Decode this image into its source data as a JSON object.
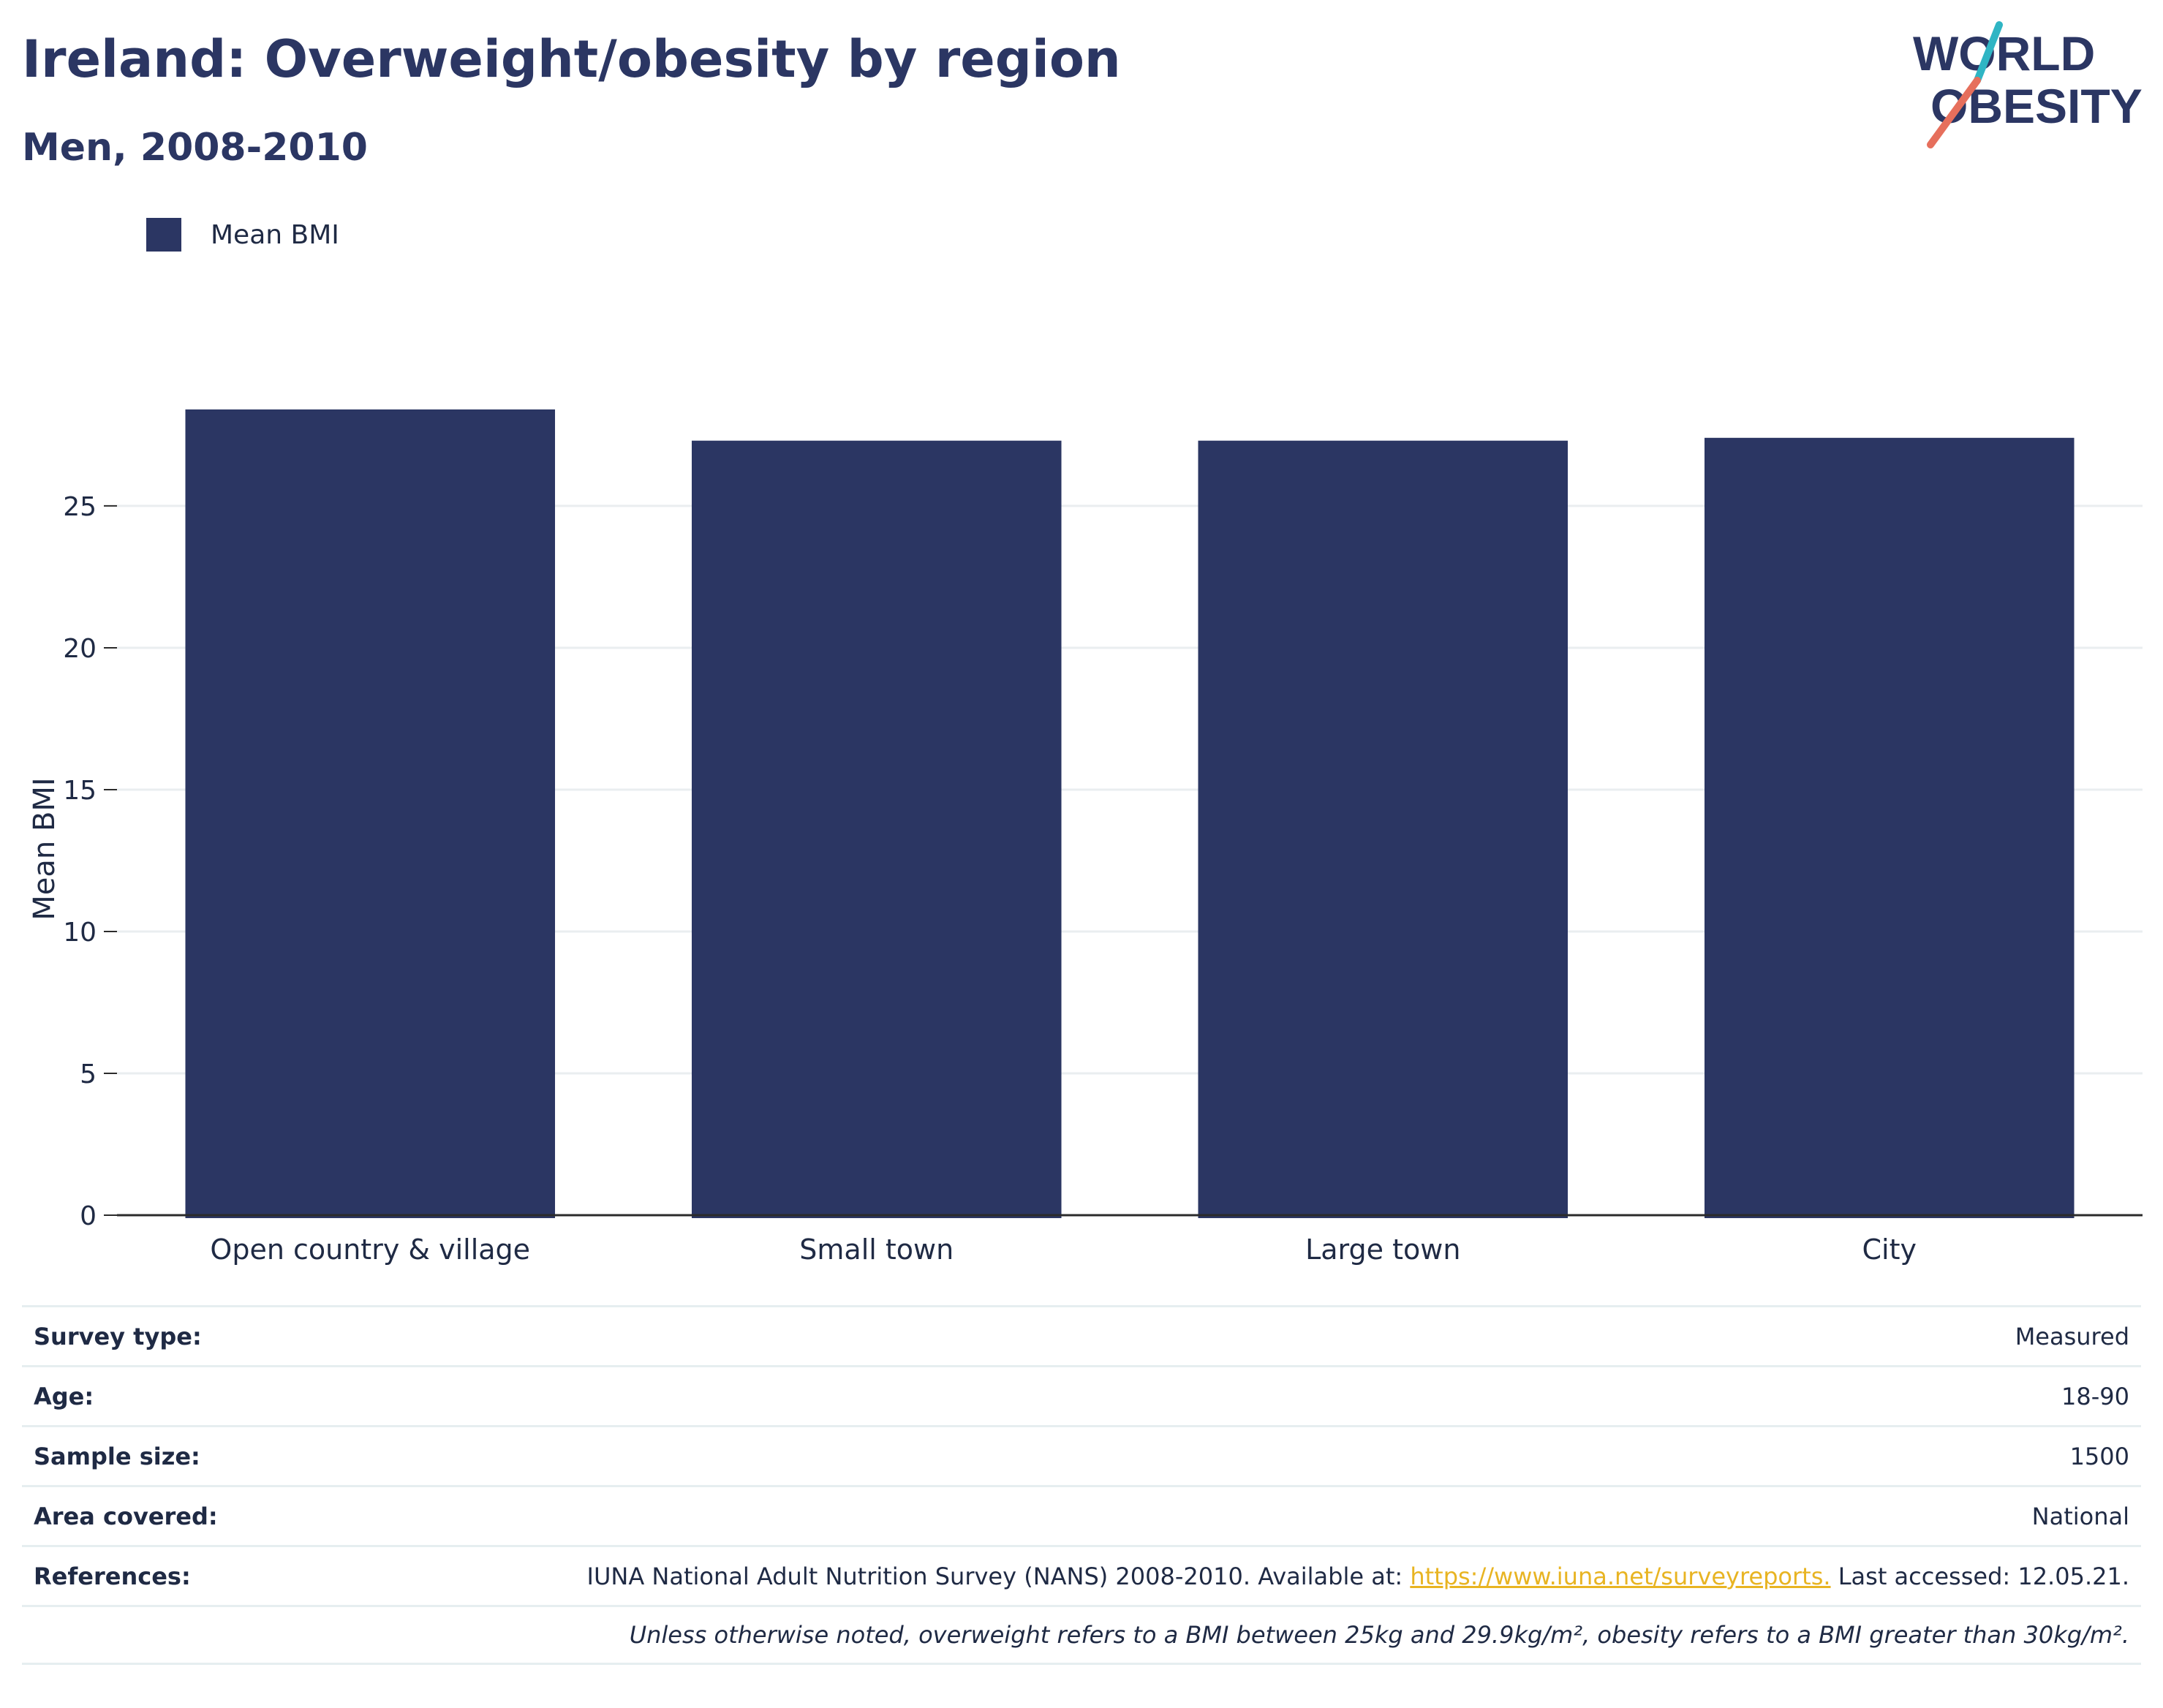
{
  "header": {
    "title": "Ireland: Overweight/obesity by region",
    "subtitle": "Men, 2008-2010"
  },
  "logo": {
    "line1": "WORLD",
    "line2": "OBESITY"
  },
  "chart_data": {
    "type": "bar",
    "categories": [
      "Open country & village",
      "Small town",
      "Large town",
      "City"
    ],
    "series": [
      {
        "name": "Mean BMI",
        "values": [
          28.4,
          27.3,
          27.3,
          27.4
        ]
      }
    ],
    "xlabel": "",
    "ylabel": "Mean BMI",
    "ylim": [
      0,
      28.4
    ],
    "yticks": [
      0,
      5,
      10,
      15,
      20,
      25
    ],
    "grid": true,
    "legend_position": "top-left",
    "bar_color": "#2b3663"
  },
  "info": {
    "rows": [
      {
        "label": "Survey type:",
        "value": "Measured"
      },
      {
        "label": "Age:",
        "value": "18-90"
      },
      {
        "label": "Sample size:",
        "value": "1500"
      },
      {
        "label": "Area covered:",
        "value": "National"
      }
    ],
    "references": {
      "label": "References:",
      "text_before": "IUNA National Adult Nutrition Survey (NANS) 2008-2010. Available at: ",
      "link": "https://www.iuna.net/surveyreports.",
      "text_after": " Last accessed: 12.05.21."
    },
    "footnote": "Unless otherwise noted, overweight refers to a BMI between 25kg and 29.9kg/m², obesity refers to a BMI greater than 30kg/m²."
  },
  "colors": {
    "navy": "#2b3663",
    "teal": "#2fb5c4",
    "coral": "#e66f5c",
    "link": "#e8b422"
  }
}
